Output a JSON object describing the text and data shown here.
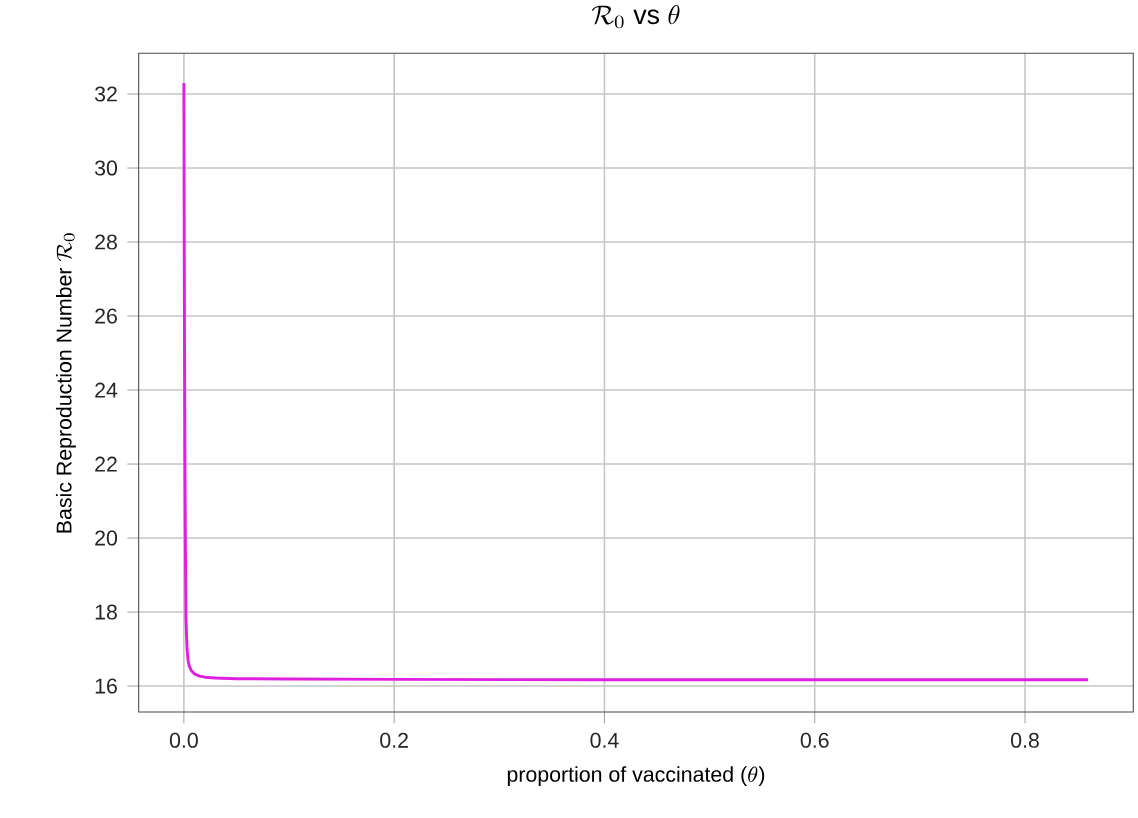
{
  "chart_data": {
    "type": "line",
    "title": "\\mathcal{R}_0\\ \\mbox{vs}\\ \\theta",
    "xlabel": "\\mbox{proportion of vaccinated (}\\theta\\mbox{)}",
    "ylabel": "\\mbox{Basic Reproduction Number }\\mathcal{R}_0",
    "series": [
      {
        "color": "#e020e0",
        "x": [
          0,
          0.0005,
          0.001,
          0.0015,
          0.002,
          0.003,
          0.004,
          0.005,
          0.007,
          0.01,
          0.015,
          0.02,
          0.03,
          0.05,
          0.1,
          0.2,
          0.4,
          0.6,
          0.86
        ],
        "values": [
          32.3,
          26,
          22,
          19.5,
          17.8,
          17.0,
          16.7,
          16.55,
          16.42,
          16.33,
          16.27,
          16.24,
          16.22,
          16.2,
          16.19,
          16.18,
          16.17,
          16.17,
          16.17
        ]
      }
    ],
    "xlim": [
      -0.043,
      0.903
    ],
    "ylim": [
      15.3,
      33.1
    ],
    "xticks": [
      {
        "value": 0,
        "label": "0.0"
      },
      0.2,
      0.4,
      0.6,
      0.8
    ],
    "yticks": [
      16,
      18,
      20,
      22,
      24,
      26,
      28,
      30,
      32
    ],
    "grid": true,
    "marker": "none",
    "line_style": "solid"
  }
}
